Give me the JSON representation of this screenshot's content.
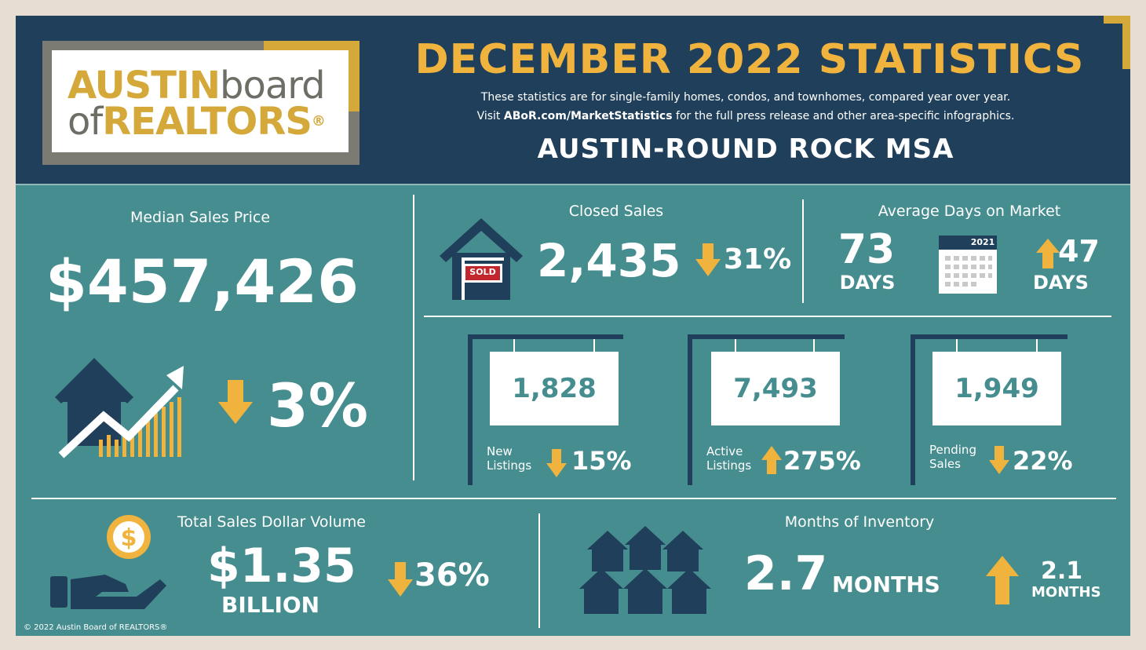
{
  "header": {
    "logo_austin": "AUSTIN",
    "logo_board": "board",
    "logo_of": "of",
    "logo_realtors": "REALTORS",
    "logo_reg": "®",
    "title": "DECEMBER 2022 STATISTICS",
    "subtitle_line1": "These statistics are for single-family homes, condos, and townhomes, compared year over year.",
    "subtitle_line2_pre": "Visit ",
    "subtitle_line2_link": "ABoR.com/MarketStatistics",
    "subtitle_line2_post": " for the full press release and other area-specific infographics.",
    "region": "AUSTIN-ROUND ROCK MSA"
  },
  "median_price": {
    "label": "Median Sales Price",
    "value": "$457,426",
    "change": "3%",
    "direction": "down"
  },
  "closed_sales": {
    "label": "Closed Sales",
    "value": "2,435",
    "change": "31%",
    "direction": "down",
    "sign_text": "SOLD"
  },
  "days_on_market": {
    "label": "Average Days on Market",
    "value": "73",
    "unit": "DAYS",
    "calendar_year": "2021",
    "change": "47",
    "change_unit": "DAYS",
    "direction": "up"
  },
  "listings": [
    {
      "value": "1,828",
      "label_line1": "New",
      "label_line2": "Listings",
      "change": "15%",
      "direction": "down"
    },
    {
      "value": "7,493",
      "label_line1": "Active",
      "label_line2": "Listings",
      "change": "275%",
      "direction": "up"
    },
    {
      "value": "1,949",
      "label_line1": "Pending",
      "label_line2": "Sales",
      "change": "22%",
      "direction": "down"
    }
  ],
  "dollar_volume": {
    "label": "Total Sales Dollar Volume",
    "value": "$1.35",
    "unit": "BILLION",
    "change": "36%",
    "direction": "down",
    "coin_symbol": "$"
  },
  "inventory": {
    "label": "Months of Inventory",
    "value": "2.7",
    "unit": "MONTHS",
    "change": "2.1",
    "change_unit": "MONTHS",
    "direction": "up"
  },
  "footer": {
    "copyright": "© 2022  Austin Board of REALTORS®"
  },
  "colors": {
    "navy": "#1f3f5a",
    "teal": "#468d8f",
    "gold": "#f0b43e",
    "logo_gold": "#d4a93a",
    "logo_grey": "#7b7b73"
  }
}
